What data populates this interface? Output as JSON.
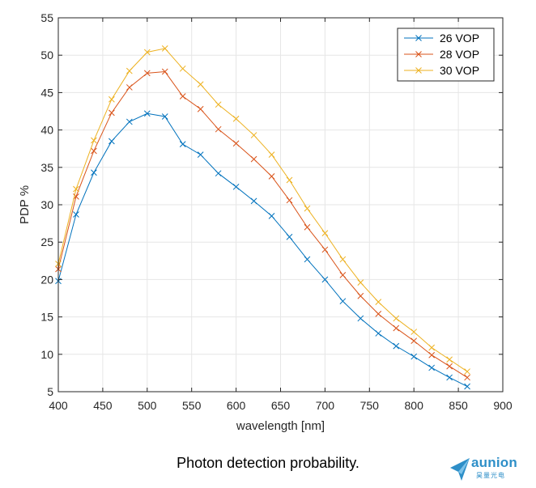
{
  "chart_data": {
    "type": "line",
    "title": "",
    "xlabel": "wavelength [nm]",
    "ylabel": "PDP %",
    "xlim": [
      400,
      900
    ],
    "ylim": [
      5,
      55
    ],
    "xticks": [
      400,
      450,
      500,
      550,
      600,
      650,
      700,
      750,
      800,
      850,
      900
    ],
    "yticks": [
      5,
      10,
      15,
      20,
      25,
      30,
      35,
      40,
      45,
      50,
      55
    ],
    "grid": true,
    "legend_position": "top-right",
    "marker": "x",
    "x": [
      400,
      420,
      440,
      460,
      480,
      500,
      520,
      540,
      560,
      580,
      600,
      620,
      640,
      660,
      680,
      700,
      720,
      740,
      760,
      780,
      800,
      820,
      840,
      860
    ],
    "series": [
      {
        "name": "26 VOP",
        "color": "#0072bd",
        "values": [
          19.8,
          28.7,
          34.3,
          38.5,
          41.1,
          42.2,
          41.8,
          38.1,
          36.7,
          34.2,
          32.4,
          30.5,
          28.5,
          25.7,
          22.7,
          20.0,
          17.1,
          14.8,
          12.8,
          11.1,
          9.7,
          8.2,
          6.9,
          5.7
        ]
      },
      {
        "name": "28 VOP",
        "color": "#d95319",
        "values": [
          21.4,
          31.1,
          37.2,
          42.3,
          45.7,
          47.6,
          47.8,
          44.5,
          42.8,
          40.1,
          38.2,
          36.1,
          33.8,
          30.6,
          27.0,
          24.0,
          20.6,
          17.8,
          15.4,
          13.5,
          11.8,
          9.9,
          8.4,
          6.9
        ]
      },
      {
        "name": "30 VOP",
        "color": "#edb120",
        "values": [
          22.1,
          32.1,
          38.6,
          44.1,
          47.9,
          50.4,
          50.9,
          48.2,
          46.1,
          43.4,
          41.5,
          39.3,
          36.7,
          33.3,
          29.5,
          26.2,
          22.7,
          19.6,
          17.0,
          14.8,
          13.0,
          10.9,
          9.3,
          7.7
        ]
      }
    ]
  },
  "caption": "Photon detection probability.",
  "logo": {
    "name": "aunion",
    "subtitle": "昊量光电",
    "color": "#2e8fc8"
  }
}
